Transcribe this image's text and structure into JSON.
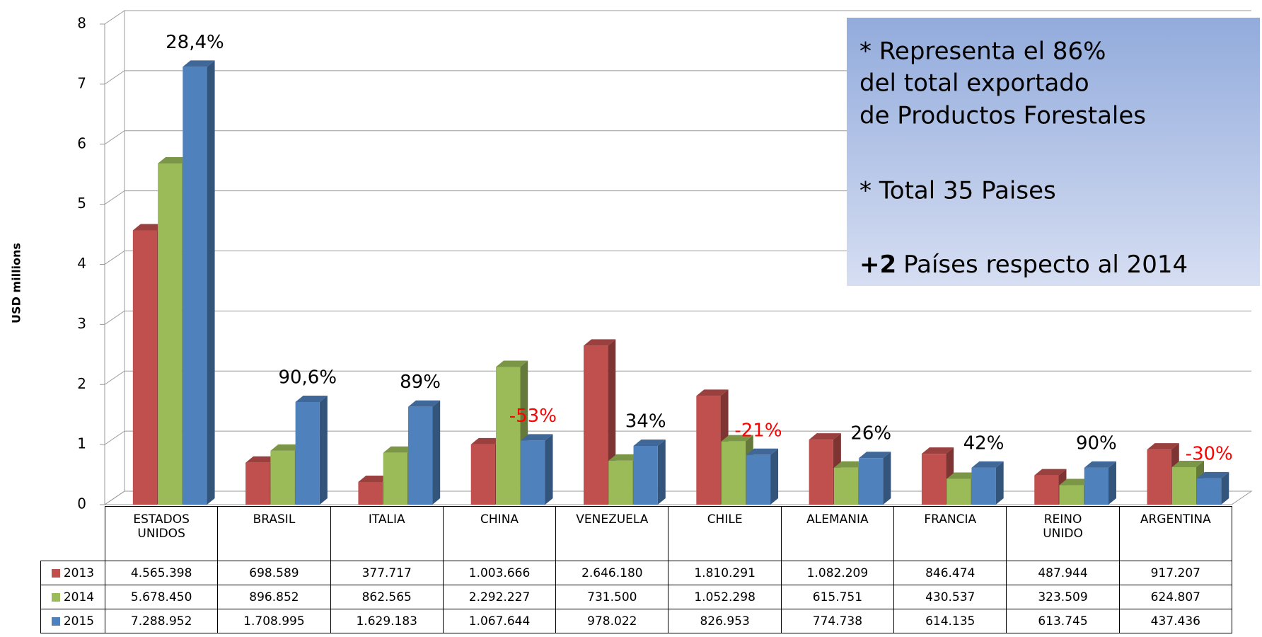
{
  "chart_data": {
    "type": "bar3d",
    "ylabel": "USD millions",
    "categories": [
      "ESTADOS UNIDOS",
      "BRASIL",
      "ITALIA",
      "CHINA",
      "VENEZUELA",
      "CHILE",
      "ALEMANIA",
      "FRANCIA",
      "REINO UNIDO",
      "ARGENTINA"
    ],
    "series": [
      {
        "name": "2013",
        "color": "#c0504d",
        "values": [
          4.565398,
          0.698589,
          0.377717,
          1.003666,
          2.64618,
          1.810291,
          1.082209,
          0.846474,
          0.487944,
          0.917207
        ],
        "value_labels": [
          "4.565.398",
          "698.589",
          "377.717",
          "1.003.666",
          "2.646.180",
          "1.810.291",
          "1.082.209",
          "846.474",
          "487.944",
          "917.207"
        ]
      },
      {
        "name": "2014",
        "color": "#9bbb59",
        "values": [
          5.67845,
          0.896852,
          0.862565,
          2.292227,
          0.7315,
          1.052298,
          0.615751,
          0.430537,
          0.323509,
          0.624807
        ],
        "value_labels": [
          "5.678.450",
          "896.852",
          "862.565",
          "2.292.227",
          "731.500",
          "1.052.298",
          "615.751",
          "430.537",
          "323.509",
          "624.807"
        ]
      },
      {
        "name": "2015",
        "color": "#4f81bd",
        "values": [
          7.288952,
          1.708995,
          1.629183,
          1.067644,
          0.978022,
          0.826953,
          0.774738,
          0.614135,
          0.613745,
          0.437436
        ],
        "value_labels": [
          "7.288.952",
          "1.708.995",
          "1.629.183",
          "1.067.644",
          "978.022",
          "826.953",
          "774.738",
          "614.135",
          "613.745",
          "437.436"
        ]
      }
    ],
    "annotations": [
      {
        "text": "28,4%",
        "color": "#000000"
      },
      {
        "text": "90,6%",
        "color": "#000000"
      },
      {
        "text": "89%",
        "color": "#000000"
      },
      {
        "text": "-53%",
        "color": "#ff0000"
      },
      {
        "text": "34%",
        "color": "#000000"
      },
      {
        "text": "-21%",
        "color": "#ff0000"
      },
      {
        "text": "26%",
        "color": "#000000"
      },
      {
        "text": "42%",
        "color": "#000000"
      },
      {
        "text": "90%",
        "color": "#000000"
      },
      {
        "text": "-30%",
        "color": "#ff0000"
      }
    ],
    "note": {
      "lines": [
        "* Representa el 86%",
        "del total exportado",
        "de Productos Forestales",
        "* Total 35 Paises"
      ],
      "bold": "+2",
      "tail": "Países respecto al 2014"
    },
    "ylim": [
      0,
      8
    ],
    "yticks": [
      0,
      1,
      2,
      3,
      4,
      5,
      6,
      7,
      8
    ],
    "grid": true
  }
}
